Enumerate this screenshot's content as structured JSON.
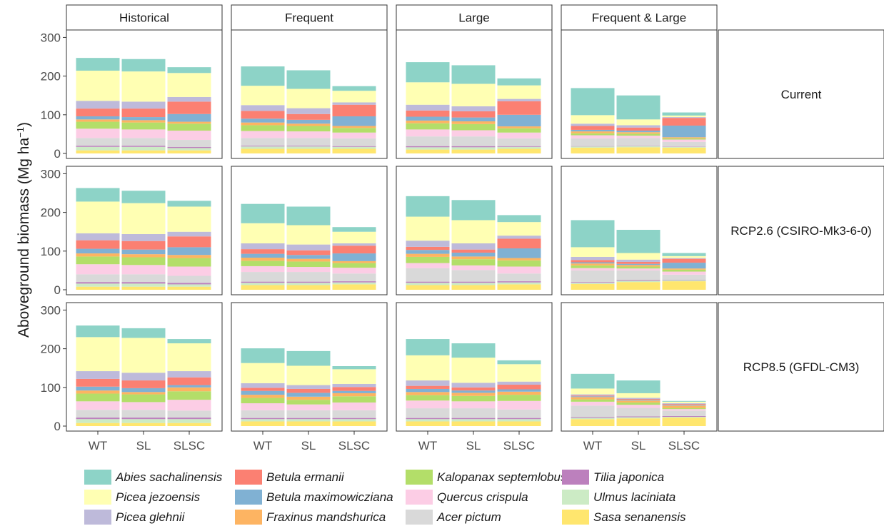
{
  "chart_data": {
    "type": "bar",
    "stacked": true,
    "title": "",
    "ylabel": "Aboveground biomass (Mg ha",
    "ylabel_superscript": "−1",
    "ylabel_close": ")",
    "ylim": [
      0,
      310
    ],
    "yticks": [
      0,
      100,
      200,
      300
    ],
    "grid": false,
    "legend_position": "bottom",
    "column_facets": [
      "Historical",
      "Frequent",
      "Large",
      "Frequent & Large"
    ],
    "row_facets": [
      "Current",
      "RCP2.6 (CSIRO-Mk3-6-0)",
      "RCP8.5 (GFDL-CM3)"
    ],
    "categories": [
      "WT",
      "SL",
      "SLSC"
    ],
    "species": [
      {
        "name": "Sasa senanensis",
        "color": "#FFE66E"
      },
      {
        "name": "Ulmus laciniata",
        "color": "#CCEBC5"
      },
      {
        "name": "Tilia japonica",
        "color": "#BC80BD"
      },
      {
        "name": "Acer pictum",
        "color": "#D9D9D9"
      },
      {
        "name": "Quercus crispula",
        "color": "#FCCDE5"
      },
      {
        "name": "Kalopanax septemlobus",
        "color": "#B3DE69"
      },
      {
        "name": "Fraxinus mandshurica",
        "color": "#FDB462"
      },
      {
        "name": "Betula maximowicziana",
        "color": "#80B1D3"
      },
      {
        "name": "Betula ermanii",
        "color": "#FB8072"
      },
      {
        "name": "Picea glehnii",
        "color": "#BEBADA"
      },
      {
        "name": "Picea jezoensis",
        "color": "#FFFFB3"
      },
      {
        "name": "Abies sachalinensis",
        "color": "#8DD3C7"
      }
    ],
    "legend_order": [
      "Abies sachalinensis",
      "Picea jezoensis",
      "Picea glehnii",
      "Betula ermanii",
      "Betula maximowicziana",
      "Fraxinus mandshurica",
      "Kalopanax septemlobus",
      "Quercus crispula",
      "Acer pictum",
      "Tilia japonica",
      "Ulmus laciniata",
      "Sasa senanensis"
    ],
    "panels": [
      {
        "row": "Current",
        "col": "Historical",
        "bars": [
          [
            8,
            9,
            3,
            20,
            24,
            18,
            6,
            8,
            20,
            20,
            78,
            33
          ],
          [
            8,
            9,
            3,
            20,
            22,
            18,
            6,
            8,
            22,
            18,
            78,
            32
          ],
          [
            8,
            6,
            3,
            18,
            24,
            18,
            5,
            20,
            32,
            12,
            62,
            15
          ]
        ]
      },
      {
        "row": "Current",
        "col": "Frequent",
        "bars": [
          [
            12,
            6,
            2,
            20,
            18,
            15,
            7,
            10,
            20,
            15,
            50,
            50
          ],
          [
            12,
            6,
            2,
            20,
            17,
            14,
            6,
            10,
            15,
            15,
            50,
            48
          ],
          [
            12,
            5,
            2,
            20,
            15,
            12,
            5,
            25,
            30,
            6,
            30,
            12
          ]
        ]
      },
      {
        "row": "Current",
        "col": "Large",
        "bars": [
          [
            10,
            6,
            3,
            25,
            18,
            16,
            7,
            10,
            16,
            15,
            58,
            52
          ],
          [
            10,
            6,
            3,
            25,
            16,
            16,
            7,
            10,
            16,
            13,
            58,
            48
          ],
          [
            12,
            5,
            2,
            20,
            15,
            11,
            5,
            30,
            35,
            6,
            35,
            18
          ]
        ]
      },
      {
        "row": "Current",
        "col": "Frequent & Large",
        "bars": [
          [
            15,
            3,
            1,
            20,
            8,
            5,
            5,
            4,
            10,
            6,
            22,
            70
          ],
          [
            16,
            3,
            1,
            20,
            6,
            5,
            4,
            4,
            8,
            6,
            15,
            62
          ],
          [
            15,
            2,
            1,
            12,
            6,
            3,
            3,
            30,
            20,
            2,
            4,
            8
          ]
        ]
      }
    ]
  },
  "panels_more": [
    {
      "row": "RCP2.6 (CSIRO-Mk3-6-0)",
      "col": "Historical",
      "bars": [
        [
          8,
          8,
          4,
          20,
          26,
          20,
          8,
          12,
          22,
          18,
          82,
          35
        ],
        [
          8,
          8,
          4,
          20,
          24,
          20,
          8,
          12,
          22,
          18,
          80,
          32
        ],
        [
          8,
          6,
          4,
          18,
          24,
          22,
          8,
          20,
          28,
          12,
          65,
          15
        ]
      ]
    },
    {
      "row": "RCP2.6 (CSIRO-Mk3-6-0)",
      "col": "Frequent",
      "bars": [
        [
          12,
          6,
          3,
          25,
          15,
          14,
          8,
          10,
          12,
          15,
          52,
          50
        ],
        [
          12,
          6,
          3,
          25,
          13,
          14,
          7,
          10,
          12,
          15,
          50,
          48
        ],
        [
          14,
          5,
          3,
          20,
          15,
          12,
          5,
          20,
          20,
          6,
          30,
          12
        ]
      ]
    },
    {
      "row": "RCP2.6 (CSIRO-Mk3-6-0)",
      "col": "Large",
      "bars": [
        [
          12,
          6,
          3,
          35,
          13,
          16,
          8,
          10,
          8,
          16,
          62,
          53
        ],
        [
          12,
          6,
          3,
          30,
          12,
          16,
          7,
          10,
          8,
          16,
          60,
          52
        ],
        [
          14,
          5,
          3,
          20,
          18,
          16,
          6,
          25,
          25,
          8,
          35,
          18
        ]
      ]
    },
    {
      "row": "RCP2.6 (CSIRO-Mk3-6-0)",
      "col": "Frequent & Large",
      "bars": [
        [
          15,
          3,
          2,
          30,
          6,
          7,
          5,
          3,
          6,
          8,
          25,
          70
        ],
        [
          20,
          3,
          2,
          25,
          5,
          5,
          4,
          3,
          5,
          6,
          17,
          60
        ],
        [
          22,
          2,
          1,
          14,
          8,
          5,
          3,
          15,
          10,
          2,
          5,
          8
        ]
      ]
    },
    {
      "row": "RCP8.5 (GFDL-CM3)",
      "col": "Historical",
      "bars": [
        [
          8,
          10,
          4,
          20,
          22,
          20,
          8,
          10,
          20,
          20,
          88,
          30
        ],
        [
          8,
          10,
          4,
          20,
          20,
          20,
          6,
          10,
          20,
          20,
          90,
          25
        ],
        [
          8,
          10,
          4,
          18,
          28,
          22,
          10,
          6,
          20,
          16,
          72,
          11
        ]
      ]
    },
    {
      "row": "RCP8.5 (GFDL-CM3)",
      "col": "Frequent",
      "bars": [
        [
          12,
          6,
          3,
          20,
          18,
          14,
          8,
          10,
          8,
          12,
          52,
          38
        ],
        [
          12,
          6,
          3,
          20,
          15,
          12,
          8,
          10,
          10,
          10,
          50,
          38
        ],
        [
          12,
          6,
          3,
          20,
          20,
          16,
          8,
          6,
          10,
          8,
          38,
          8
        ]
      ]
    },
    {
      "row": "RCP8.5 (GFDL-CM3)",
      "col": "Large",
      "bars": [
        [
          12,
          6,
          3,
          25,
          20,
          14,
          8,
          8,
          8,
          14,
          65,
          42
        ],
        [
          12,
          6,
          3,
          25,
          18,
          14,
          8,
          6,
          8,
          12,
          65,
          37
        ],
        [
          12,
          6,
          3,
          22,
          22,
          16,
          8,
          6,
          12,
          8,
          45,
          10
        ]
      ]
    },
    {
      "row": "RCP8.5 (GFDL-CM3)",
      "col": "Frequent & Large",
      "bars": [
        [
          18,
          3,
          2,
          30,
          10,
          6,
          6,
          2,
          2,
          3,
          15,
          38
        ],
        [
          20,
          3,
          2,
          22,
          8,
          6,
          5,
          2,
          2,
          3,
          12,
          33
        ],
        [
          22,
          2,
          2,
          14,
          4,
          3,
          6,
          2,
          2,
          2,
          4,
          2
        ]
      ]
    }
  ]
}
